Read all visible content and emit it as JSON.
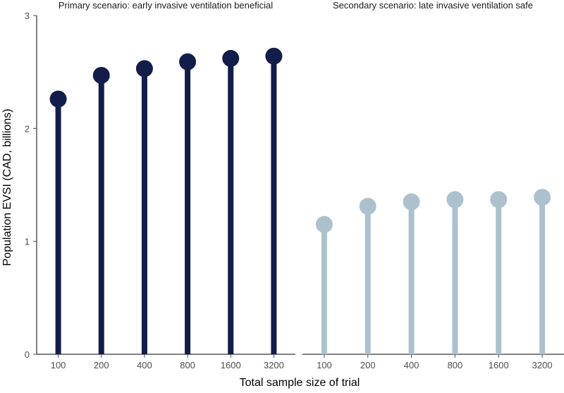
{
  "chart_data": {
    "type": "lollipop",
    "xlabel": "Total sample size of trial",
    "ylabel": "Population EVSI (CAD, billions)",
    "ylim": [
      0,
      3
    ],
    "yticks": [
      "0",
      "1",
      "2",
      "3"
    ],
    "categories": [
      "100",
      "200",
      "400",
      "800",
      "1600",
      "3200"
    ],
    "grid": false,
    "panels": [
      {
        "title": "Primary scenario: early invasive ventilation beneficial",
        "color": "#131d4a",
        "values": [
          2.26,
          2.47,
          2.53,
          2.59,
          2.62,
          2.64
        ]
      },
      {
        "title": "Secondary scenario: late invasive ventilation safe",
        "color": "#acc1cd",
        "values": [
          1.15,
          1.31,
          1.35,
          1.37,
          1.37,
          1.39
        ]
      }
    ]
  }
}
